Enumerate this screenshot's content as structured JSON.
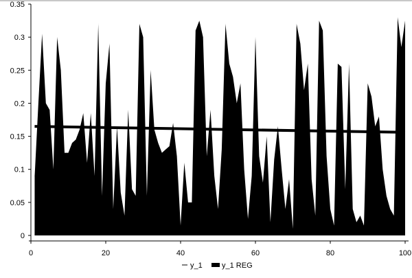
{
  "chart_data": {
    "type": "area",
    "title": "",
    "xlabel": "",
    "ylabel": "",
    "xlim": [
      0,
      100
    ],
    "ylim": [
      0,
      0.35
    ],
    "x_ticks": [
      "0",
      "20",
      "40",
      "60",
      "80",
      "100"
    ],
    "y_ticks": [
      "0",
      "0.05",
      "0.1",
      "0.15",
      "0.2",
      "0.25",
      "0.3",
      "0.35"
    ],
    "grid": false,
    "legend_placement": "bottom",
    "series": [
      {
        "name": "y_1",
        "color": "#000000",
        "x_start": 1,
        "values": [
          0.09,
          0.2,
          0.305,
          0.2,
          0.19,
          0.1,
          0.3,
          0.25,
          0.125,
          0.125,
          0.14,
          0.145,
          0.16,
          0.185,
          0.11,
          0.185,
          0.09,
          0.32,
          0.06,
          0.23,
          0.29,
          0.04,
          0.165,
          0.065,
          0.03,
          0.19,
          0.07,
          0.06,
          0.32,
          0.3,
          0.06,
          0.25,
          0.16,
          0.14,
          0.125,
          0.13,
          0.135,
          0.17,
          0.12,
          0.015,
          0.11,
          0.05,
          0.05,
          0.31,
          0.325,
          0.3,
          0.12,
          0.19,
          0.09,
          0.04,
          0.13,
          0.32,
          0.26,
          0.24,
          0.2,
          0.23,
          0.1,
          0.025,
          0.09,
          0.3,
          0.12,
          0.08,
          0.15,
          0.02,
          0.115,
          0.165,
          0.1,
          0.04,
          0.085,
          0.01,
          0.32,
          0.29,
          0.22,
          0.26,
          0.085,
          0.03,
          0.325,
          0.31,
          0.12,
          0.04,
          0.015,
          0.26,
          0.255,
          0.07,
          0.26,
          0.04,
          0.02,
          0.03,
          0.015,
          0.23,
          0.21,
          0.165,
          0.18,
          0.1,
          0.06,
          0.04,
          0.03,
          0.33,
          0.285,
          0.325
        ]
      },
      {
        "name": "y_1 REG",
        "color": "#000000",
        "type": "line",
        "x": [
          1,
          100
        ],
        "values": [
          0.165,
          0.156
        ]
      }
    ]
  }
}
